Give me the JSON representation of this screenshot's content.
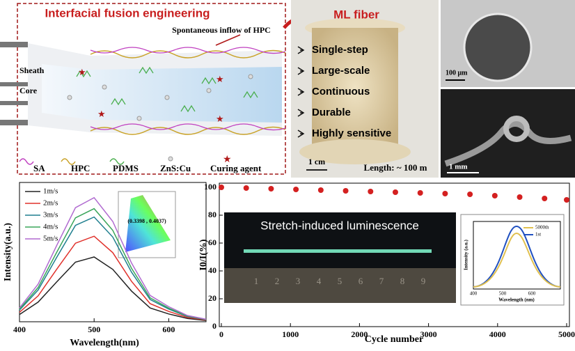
{
  "panel_a": {
    "title": "Interfacial fusion engineering",
    "annotation": "Spontaneous inflow of HPC",
    "labels": [
      "Sheath",
      "Core"
    ],
    "legend": [
      "SA",
      "HPC",
      "PDMS",
      "ZnS:Cu",
      "Curing agent"
    ]
  },
  "panel_b": {
    "title": "ML fiber",
    "features": [
      "Single-step",
      "Large-scale",
      "Continuous",
      "Durable",
      "Highly sensitive"
    ],
    "scale_bar": "1 cm",
    "length": "Length: ~ 100 m"
  },
  "panel_c": {
    "scale_bars": [
      "100 μm",
      "1 mm"
    ]
  },
  "chart_data": [
    {
      "type": "line",
      "xlabel": "Wavelength(nm)",
      "ylabel": "Intensity(a.u.)",
      "x": [
        400,
        425,
        450,
        475,
        500,
        525,
        550,
        575,
        600,
        625,
        650
      ],
      "xlim": [
        400,
        650
      ],
      "xticks": [
        400,
        500,
        600
      ],
      "ylim": [
        0,
        100
      ],
      "series": [
        {
          "name": "1m/s",
          "color": "#222222",
          "values": [
            5.2,
            14.1,
            28.7,
            42.8,
            46.5,
            37.6,
            22.1,
            9.9,
            5.6,
            2.4,
            0.9
          ]
        },
        {
          "name": "2m/s",
          "color": "#e0302a",
          "values": [
            6.8,
            18.6,
            37.8,
            56.4,
            61.4,
            49.6,
            29.1,
            13.0,
            7.4,
            3.1,
            1.2
          ]
        },
        {
          "name": "3m/s",
          "color": "#1f7f8f",
          "values": [
            8.4,
            22.8,
            46.4,
            69.2,
            75.2,
            60.8,
            35.7,
            16.0,
            9.1,
            3.8,
            1.5
          ]
        },
        {
          "name": "4m/s",
          "color": "#3aa55a",
          "values": [
            9.0,
            24.6,
            50.0,
            74.6,
            81.2,
            65.6,
            38.5,
            17.2,
            9.8,
            4.1,
            1.6
          ]
        },
        {
          "name": "5m/s",
          "color": "#b06ad0",
          "values": [
            9.9,
            27.0,
            54.9,
            81.9,
            89.1,
            72.0,
            42.3,
            18.9,
            10.8,
            4.5,
            1.8
          ]
        }
      ],
      "inset_label": "(0.3398 , 0.4037)"
    },
    {
      "type": "scatter",
      "xlabel": "Cycle number",
      "ylabel": "I0/I(%)",
      "color": "#d42020",
      "x": [
        0,
        360,
        720,
        1080,
        1440,
        1800,
        2160,
        2520,
        2880,
        3240,
        3600,
        3960,
        4320,
        4680,
        5000
      ],
      "values": [
        100,
        99.5,
        99,
        98.5,
        98,
        97.5,
        97,
        96.5,
        96,
        95.5,
        95,
        94,
        93,
        92,
        91
      ],
      "xlim": [
        0,
        5000
      ],
      "xticks": [
        0,
        1000,
        2000,
        3000,
        4000,
        5000
      ],
      "ylim": [
        0,
        103
      ],
      "yticks": [
        0,
        20,
        40,
        60,
        80,
        100
      ],
      "inset": {
        "title": "Stretch-induced luminescence",
        "ruler": [
          "1",
          "2",
          "3",
          "4",
          "5",
          "6",
          "7",
          "8",
          "9"
        ],
        "legend": [
          "5000th",
          "1st"
        ],
        "xticks": [
          "400",
          "500",
          "600"
        ],
        "xlabel": "Wavelength (nm)",
        "ylabel": "Intensity (a.u.)"
      }
    }
  ]
}
